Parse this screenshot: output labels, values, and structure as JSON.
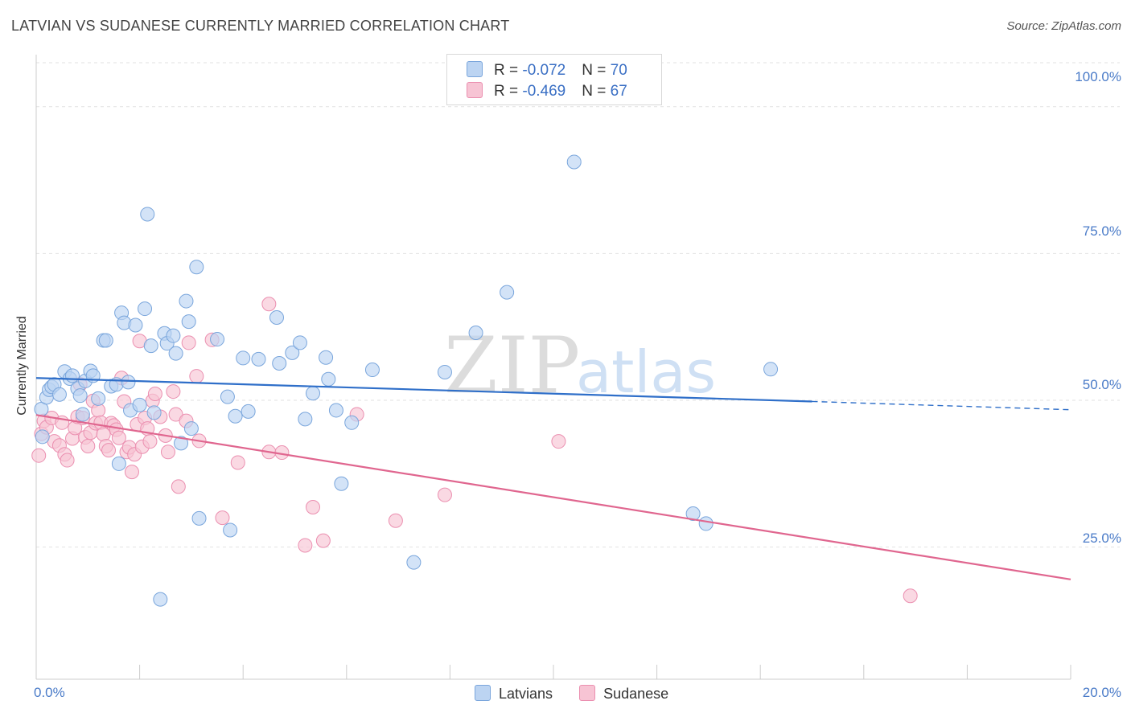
{
  "title": "LATVIAN VS SUDANESE CURRENTLY MARRIED CORRELATION CHART",
  "source": "Source: ZipAtlas.com",
  "watermark": {
    "zip": "ZIP",
    "atlas": "atlas"
  },
  "colors": {
    "latvians_fill": "#bcd4f2",
    "latvians_stroke": "#7aa6dc",
    "latvians_line": "#2f6fc9",
    "sudanese_fill": "#f7c4d4",
    "sudanese_stroke": "#eb8fb0",
    "sudanese_line": "#e0668f",
    "axis_text": "#4a7bc8"
  },
  "legend": {
    "rows": [
      {
        "r_label": "R = ",
        "r_value": "-0.072",
        "n_label": "N = ",
        "n_value": "70"
      },
      {
        "r_label": "R = ",
        "r_value": "-0.469",
        "n_label": "N = ",
        "n_value": "67"
      }
    ]
  },
  "bottom_legend": [
    "Latvians",
    "Sudanese"
  ],
  "chart_data": {
    "type": "scatter",
    "xlabel": "",
    "ylabel": "Currently Married",
    "xlim": [
      0,
      20
    ],
    "ylim": [
      2.5,
      107.5
    ],
    "x_tick_labels": [
      "0.0%",
      "20.0%"
    ],
    "y_ticks": [
      25,
      50,
      75,
      100
    ],
    "y_tick_labels": [
      "25.0%",
      "50.0%",
      "75.0%",
      "100.0%"
    ],
    "grid": true,
    "series": [
      {
        "name": "Latvians",
        "trend": {
          "x0": 0,
          "y0": 53.8,
          "x1": 15.0,
          "y1": 49.8,
          "dashed_to_x": 20,
          "dashed_to_y": 48.4
        },
        "points": [
          [
            0.1,
            48.5
          ],
          [
            0.12,
            43.8
          ],
          [
            0.2,
            50.5
          ],
          [
            0.25,
            51.8
          ],
          [
            0.3,
            52.3
          ],
          [
            0.35,
            52.7
          ],
          [
            0.45,
            51.0
          ],
          [
            0.55,
            54.9
          ],
          [
            0.65,
            53.7
          ],
          [
            0.7,
            54.2
          ],
          [
            0.8,
            52.0
          ],
          [
            0.85,
            50.8
          ],
          [
            0.9,
            47.6
          ],
          [
            0.95,
            53.3
          ],
          [
            1.05,
            55.0
          ],
          [
            1.1,
            54.2
          ],
          [
            1.2,
            50.3
          ],
          [
            1.3,
            60.2
          ],
          [
            1.35,
            60.2
          ],
          [
            1.45,
            52.4
          ],
          [
            1.55,
            52.7
          ],
          [
            1.6,
            39.2
          ],
          [
            1.65,
            64.9
          ],
          [
            1.7,
            63.2
          ],
          [
            1.78,
            53.1
          ],
          [
            1.82,
            48.3
          ],
          [
            1.92,
            62.8
          ],
          [
            2.0,
            49.2
          ],
          [
            2.1,
            65.6
          ],
          [
            2.15,
            81.7
          ],
          [
            2.22,
            59.3
          ],
          [
            2.28,
            47.9
          ],
          [
            2.4,
            16.1
          ],
          [
            2.48,
            61.4
          ],
          [
            2.53,
            59.7
          ],
          [
            2.65,
            61.0
          ],
          [
            2.7,
            58.0
          ],
          [
            2.8,
            42.7
          ],
          [
            2.9,
            66.9
          ],
          [
            2.95,
            63.4
          ],
          [
            3.0,
            45.2
          ],
          [
            3.1,
            72.7
          ],
          [
            3.15,
            29.9
          ],
          [
            3.5,
            60.4
          ],
          [
            3.7,
            50.6
          ],
          [
            3.75,
            27.9
          ],
          [
            3.85,
            47.3
          ],
          [
            4.0,
            57.2
          ],
          [
            4.1,
            48.1
          ],
          [
            4.3,
            57.0
          ],
          [
            4.65,
            64.1
          ],
          [
            4.7,
            56.3
          ],
          [
            4.95,
            58.1
          ],
          [
            5.1,
            59.8
          ],
          [
            5.2,
            46.8
          ],
          [
            5.35,
            51.2
          ],
          [
            5.6,
            57.3
          ],
          [
            5.65,
            53.6
          ],
          [
            5.8,
            48.3
          ],
          [
            5.9,
            35.8
          ],
          [
            6.1,
            46.2
          ],
          [
            6.5,
            55.2
          ],
          [
            7.3,
            22.4
          ],
          [
            7.9,
            54.8
          ],
          [
            8.5,
            61.5
          ],
          [
            9.1,
            68.4
          ],
          [
            10.4,
            90.6
          ],
          [
            12.7,
            30.7
          ],
          [
            12.95,
            29.0
          ],
          [
            14.2,
            55.3
          ]
        ]
      },
      {
        "name": "Sudanese",
        "trend": {
          "x0": 0,
          "y0": 47.5,
          "x1": 20,
          "y1": 19.5
        },
        "points": [
          [
            0.05,
            40.6
          ],
          [
            0.1,
            44.3
          ],
          [
            0.15,
            46.5
          ],
          [
            0.2,
            45.4
          ],
          [
            0.3,
            47.0
          ],
          [
            0.35,
            43.0
          ],
          [
            0.45,
            42.3
          ],
          [
            0.5,
            46.2
          ],
          [
            0.55,
            40.8
          ],
          [
            0.6,
            39.8
          ],
          [
            0.7,
            43.5
          ],
          [
            0.75,
            45.3
          ],
          [
            0.8,
            47.2
          ],
          [
            0.85,
            52.7
          ],
          [
            0.9,
            47.0
          ],
          [
            0.95,
            43.7
          ],
          [
            1.0,
            42.2
          ],
          [
            1.05,
            44.5
          ],
          [
            1.1,
            49.9
          ],
          [
            1.15,
            46.1
          ],
          [
            1.2,
            48.3
          ],
          [
            1.25,
            46.2
          ],
          [
            1.3,
            44.2
          ],
          [
            1.35,
            42.2
          ],
          [
            1.4,
            41.5
          ],
          [
            1.45,
            46.1
          ],
          [
            1.5,
            45.7
          ],
          [
            1.55,
            45.0
          ],
          [
            1.6,
            43.6
          ],
          [
            1.65,
            53.8
          ],
          [
            1.7,
            49.8
          ],
          [
            1.75,
            41.2
          ],
          [
            1.8,
            42.0
          ],
          [
            1.85,
            37.8
          ],
          [
            1.9,
            40.8
          ],
          [
            1.95,
            45.9
          ],
          [
            2.0,
            60.1
          ],
          [
            2.05,
            42.1
          ],
          [
            2.1,
            47.0
          ],
          [
            2.15,
            45.2
          ],
          [
            2.2,
            43.0
          ],
          [
            2.25,
            49.9
          ],
          [
            2.3,
            51.1
          ],
          [
            2.4,
            47.2
          ],
          [
            2.5,
            44.0
          ],
          [
            2.55,
            41.2
          ],
          [
            2.65,
            51.5
          ],
          [
            2.7,
            47.6
          ],
          [
            2.75,
            35.3
          ],
          [
            2.9,
            46.5
          ],
          [
            2.95,
            59.8
          ],
          [
            3.1,
            54.1
          ],
          [
            3.15,
            43.1
          ],
          [
            3.4,
            60.3
          ],
          [
            3.6,
            30.0
          ],
          [
            3.9,
            39.4
          ],
          [
            4.5,
            66.4
          ],
          [
            4.5,
            41.2
          ],
          [
            4.75,
            41.1
          ],
          [
            5.2,
            25.3
          ],
          [
            5.35,
            31.8
          ],
          [
            5.55,
            26.1
          ],
          [
            6.2,
            47.6
          ],
          [
            6.95,
            29.5
          ],
          [
            7.9,
            33.9
          ],
          [
            10.1,
            43.0
          ],
          [
            16.9,
            16.7
          ]
        ]
      }
    ]
  }
}
